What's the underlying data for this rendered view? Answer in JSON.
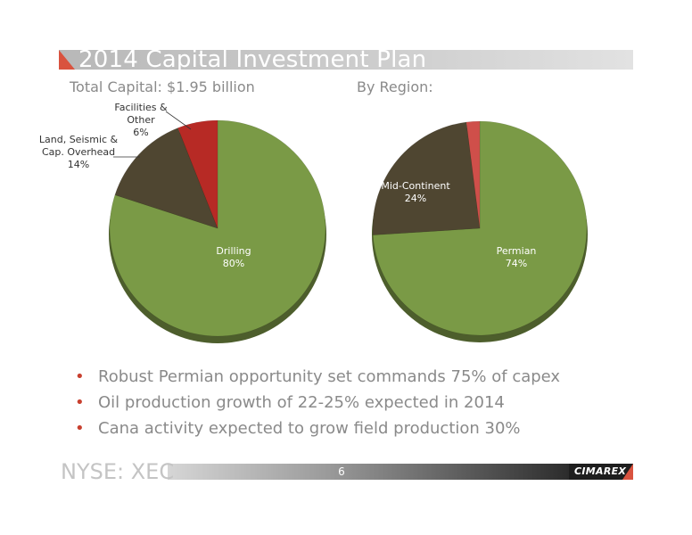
{
  "slide": {
    "title": "2014 Capital Investment Plan",
    "footer_ticker": "NYSE: XEC",
    "page_number": "6",
    "logo_text": "CIMAREX",
    "accent_color": "#d9533f"
  },
  "bullets": [
    "Robust Permian opportunity set commands 75% of capex",
    "Oil production growth of 22-25% expected in 2014",
    "Cana activity expected to grow field production 30%"
  ],
  "chart_data": [
    {
      "type": "pie",
      "title": "Total Capital: $1.95 billion",
      "slices": [
        {
          "label_lines": [
            "Drilling",
            "80%"
          ],
          "value": 80,
          "color": "#7a9a46",
          "label_position": "inside"
        },
        {
          "label_lines": [
            "Land, Seismic &",
            "Cap. Overhead",
            "14%"
          ],
          "value": 14,
          "color": "#4f4631",
          "label_position": "outside-left"
        },
        {
          "label_lines": [
            "Facilities &",
            "Other",
            "6%"
          ],
          "value": 6,
          "color": "#b72a25",
          "label_position": "outside-top"
        }
      ]
    },
    {
      "type": "pie",
      "title": "By Region:",
      "slices": [
        {
          "label_lines": [
            "Permian",
            "74%"
          ],
          "value": 74,
          "color": "#7a9a46",
          "label_position": "inside"
        },
        {
          "label_lines": [
            "Mid-Continent",
            "24%"
          ],
          "value": 24,
          "color": "#4f4631",
          "label_position": "inside"
        },
        {
          "label_lines": [],
          "value": 2,
          "color": "#cf4f4a",
          "label_position": "none"
        }
      ]
    }
  ]
}
